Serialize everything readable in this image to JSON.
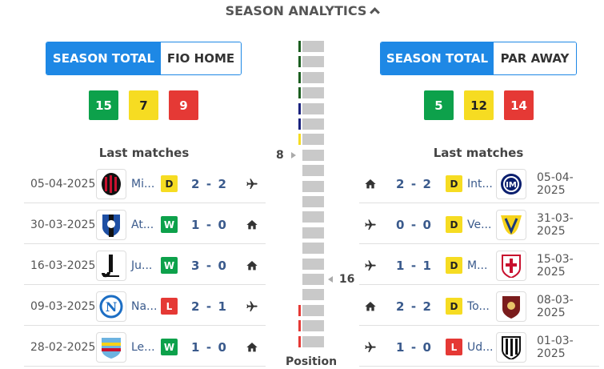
{
  "header": {
    "title": "SEASON ANALYTICS"
  },
  "left": {
    "tabs": [
      "SEASON TOTAL",
      "FIO HOME"
    ],
    "stats": [
      15,
      7,
      9
    ],
    "last_matches_title": "Last matches",
    "matches": [
      {
        "date": "05-04-2025",
        "team": "Mi...",
        "logo": "ac-milan-logo",
        "result": "D",
        "score_home": "2",
        "score_away": "2",
        "venue": "away"
      },
      {
        "date": "30-03-2025",
        "team": "At...",
        "logo": "atalanta-logo",
        "result": "W",
        "score_home": "1",
        "score_away": "0",
        "venue": "home"
      },
      {
        "date": "16-03-2025",
        "team": "Ju...",
        "logo": "juventus-logo",
        "result": "W",
        "score_home": "3",
        "score_away": "0",
        "venue": "home"
      },
      {
        "date": "09-03-2025",
        "team": "Na...",
        "logo": "napoli-logo",
        "result": "L",
        "score_home": "2",
        "score_away": "1",
        "venue": "away"
      },
      {
        "date": "28-02-2025",
        "team": "Le...",
        "logo": "lecce-logo",
        "result": "W",
        "score_home": "1",
        "score_away": "0",
        "venue": "home"
      }
    ]
  },
  "right": {
    "tabs": [
      "SEASON TOTAL",
      "PAR AWAY"
    ],
    "stats": [
      5,
      12,
      14
    ],
    "last_matches_title": "Last matches",
    "matches": [
      {
        "date": "05-04-2025",
        "team": "Int...",
        "logo": "inter-logo",
        "result": "D",
        "score_home": "2",
        "score_away": "2",
        "venue": "home"
      },
      {
        "date": "31-03-2025",
        "team": "Ve...",
        "logo": "verona-logo",
        "result": "D",
        "score_home": "0",
        "score_away": "0",
        "venue": "away"
      },
      {
        "date": "15-03-2025",
        "team": "M...",
        "logo": "monza-logo",
        "result": "D",
        "score_home": "1",
        "score_away": "1",
        "venue": "away"
      },
      {
        "date": "08-03-2025",
        "team": "To...",
        "logo": "torino-logo",
        "result": "D",
        "score_home": "2",
        "score_away": "2",
        "venue": "home"
      },
      {
        "date": "01-03-2025",
        "team": "Ud...",
        "logo": "udinese-logo",
        "result": "L",
        "score_home": "1",
        "score_away": "0",
        "venue": "away"
      }
    ]
  },
  "position": {
    "title": "Position",
    "total_positions": 20,
    "left_team_position": 8,
    "right_team_position": 16,
    "zone_colors": [
      "#1b5e20",
      "#1b5e20",
      "#1b5e20",
      "#1b5e20",
      "#1a237e",
      "#1a237e",
      "#f6dc22"
    ],
    "relegation_color": "#e53935",
    "relegation_positions": [
      18,
      19,
      20
    ]
  },
  "colors": {
    "accent": "#1e88e5",
    "win": "#0da14b",
    "draw": "#f6dc22",
    "loss": "#e53935",
    "team_text": "#3a5a8c"
  }
}
